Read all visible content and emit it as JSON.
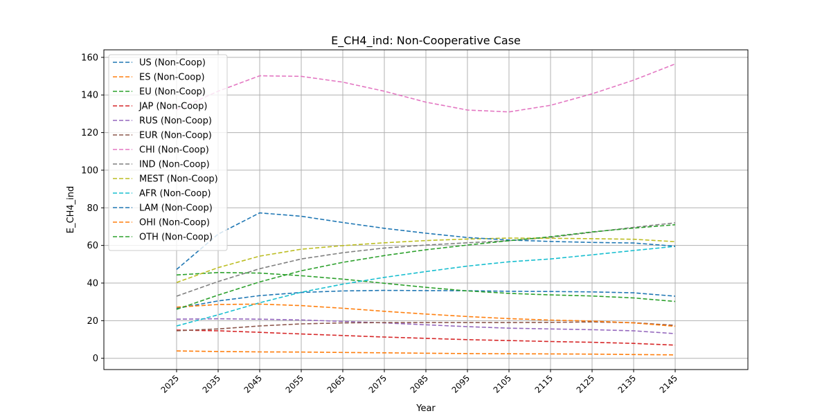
{
  "chart_data": {
    "type": "line",
    "title": "E_CH4_ind: Non-Cooperative Case",
    "xlabel": "Year",
    "ylabel": "E_CH4_ind",
    "x": [
      2025,
      2035,
      2045,
      2055,
      2065,
      2075,
      2085,
      2095,
      2105,
      2115,
      2125,
      2135,
      2145
    ],
    "xlim": [
      2007.5,
      2162.5
    ],
    "ylim": [
      -6,
      164
    ],
    "yticks": [
      0,
      20,
      40,
      60,
      80,
      100,
      120,
      140,
      160
    ],
    "grid": true,
    "legend_position": "upper-left",
    "line_style": "dashed",
    "series": [
      {
        "name": "US (Non-Coop)",
        "color": "#1f77b4",
        "values": [
          26.5,
          30.5,
          33.3,
          35.0,
          35.8,
          36.1,
          36.0,
          35.9,
          35.6,
          35.5,
          35.3,
          34.8,
          33.0
        ]
      },
      {
        "name": "ES (Non-Coop)",
        "color": "#ff7f0e",
        "values": [
          3.9,
          3.6,
          3.4,
          3.3,
          3.1,
          2.9,
          2.7,
          2.5,
          2.4,
          2.3,
          2.2,
          2.0,
          1.8
        ]
      },
      {
        "name": "EU (Non-Coop)",
        "color": "#2ca02c",
        "values": [
          44.3,
          45.6,
          45.3,
          43.9,
          42.1,
          39.9,
          37.7,
          35.8,
          34.5,
          33.7,
          33.1,
          32.1,
          30.2
        ]
      },
      {
        "name": "JAP (Non-Coop)",
        "color": "#d62728",
        "values": [
          15.0,
          14.6,
          13.8,
          12.9,
          12.1,
          11.3,
          10.6,
          9.9,
          9.4,
          8.9,
          8.5,
          7.9,
          7.0
        ]
      },
      {
        "name": "RUS (Non-Coop)",
        "color": "#9467bd",
        "values": [
          20.8,
          21.0,
          20.8,
          20.4,
          19.6,
          18.8,
          17.8,
          16.8,
          16.0,
          15.6,
          15.2,
          14.6,
          13.1
        ]
      },
      {
        "name": "EUR (Non-Coop)",
        "color": "#8c564b",
        "values": [
          14.6,
          15.6,
          17.2,
          18.3,
          18.8,
          19.0,
          19.0,
          19.0,
          19.0,
          19.1,
          19.3,
          18.9,
          17.5
        ]
      },
      {
        "name": "CHI (Non-Coop)",
        "color": "#e377c2",
        "values": [
          132.0,
          142.0,
          150.2,
          149.9,
          146.8,
          142.0,
          136.2,
          132.0,
          131.0,
          134.5,
          140.6,
          147.9,
          156.5
        ]
      },
      {
        "name": "IND (Non-Coop)",
        "color": "#7f7f7f",
        "values": [
          33.0,
          40.8,
          47.6,
          52.8,
          56.1,
          58.6,
          60.2,
          61.4,
          62.5,
          64.3,
          67.0,
          69.6,
          72.0
        ]
      },
      {
        "name": "MEST (Non-Coop)",
        "color": "#bcbd22",
        "values": [
          40.3,
          48.2,
          54.3,
          58.0,
          59.9,
          61.4,
          62.6,
          63.4,
          63.9,
          63.8,
          63.6,
          63.3,
          62.0
        ]
      },
      {
        "name": "AFR (Non-Coop)",
        "color": "#17becf",
        "values": [
          17.2,
          23.1,
          29.5,
          35.1,
          39.4,
          43.0,
          46.1,
          49.0,
          51.3,
          52.8,
          55.0,
          57.3,
          59.5
        ]
      },
      {
        "name": "LAM (Non-Coop)",
        "color": "#1f77b4",
        "values": [
          47.2,
          66.0,
          77.3,
          75.5,
          72.2,
          69.1,
          66.5,
          64.2,
          62.9,
          62.1,
          61.6,
          61.3,
          59.6
        ]
      },
      {
        "name": "OHI (Non-Coop)",
        "color": "#ff7f0e",
        "values": [
          27.2,
          28.6,
          28.8,
          28.0,
          26.6,
          25.0,
          23.5,
          22.2,
          21.1,
          20.3,
          19.8,
          18.8,
          17.0
        ]
      },
      {
        "name": "OTH (Non-Coop)",
        "color": "#2ca02c",
        "values": [
          26.0,
          33.6,
          40.6,
          46.5,
          51.0,
          54.6,
          57.7,
          60.2,
          62.5,
          64.6,
          67.2,
          69.2,
          71.0
        ]
      }
    ]
  }
}
